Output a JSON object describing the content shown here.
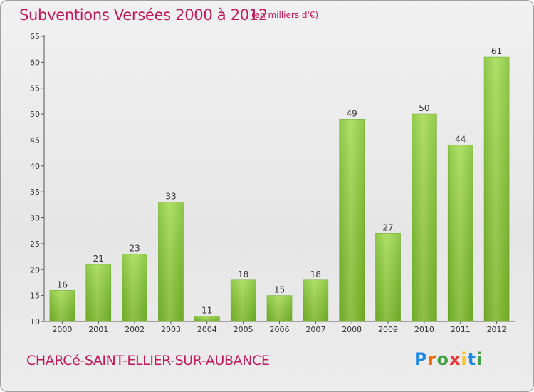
{
  "title": "Subventions Versées 2000 à 2012",
  "subtitle": "(en milliers d'€)",
  "commune": "CHARCé-SAINT-ELLIER-SUR-AUBANCE",
  "logo": {
    "letters": [
      "P",
      "r",
      "o",
      "x",
      "i",
      "t",
      "i"
    ],
    "colors": [
      "#1e88e5",
      "#ef6c00",
      "#43a047",
      "#e53935",
      "#fbc02d",
      "#1e88e5",
      "#43a047"
    ]
  },
  "chart_data": {
    "type": "bar",
    "categories": [
      "2000",
      "2001",
      "2002",
      "2003",
      "2004",
      "2005",
      "2006",
      "2007",
      "2008",
      "2009",
      "2010",
      "2011",
      "2012"
    ],
    "values": [
      16,
      21,
      23,
      33,
      11,
      18,
      15,
      18,
      49,
      27,
      50,
      44,
      61
    ],
    "data_labels": [
      "16",
      "21",
      "23",
      "33",
      "11",
      "18",
      "15",
      "18",
      "49",
      "27",
      "50",
      "44",
      "61"
    ],
    "ylim": [
      10,
      65
    ],
    "yticks": [
      "10",
      "15",
      "20",
      "25",
      "30",
      "35",
      "40",
      "45",
      "50",
      "55",
      "60",
      "65"
    ],
    "grid": false,
    "bar_color": "#7cc02c",
    "bar_color_light": "#a2d94e"
  }
}
